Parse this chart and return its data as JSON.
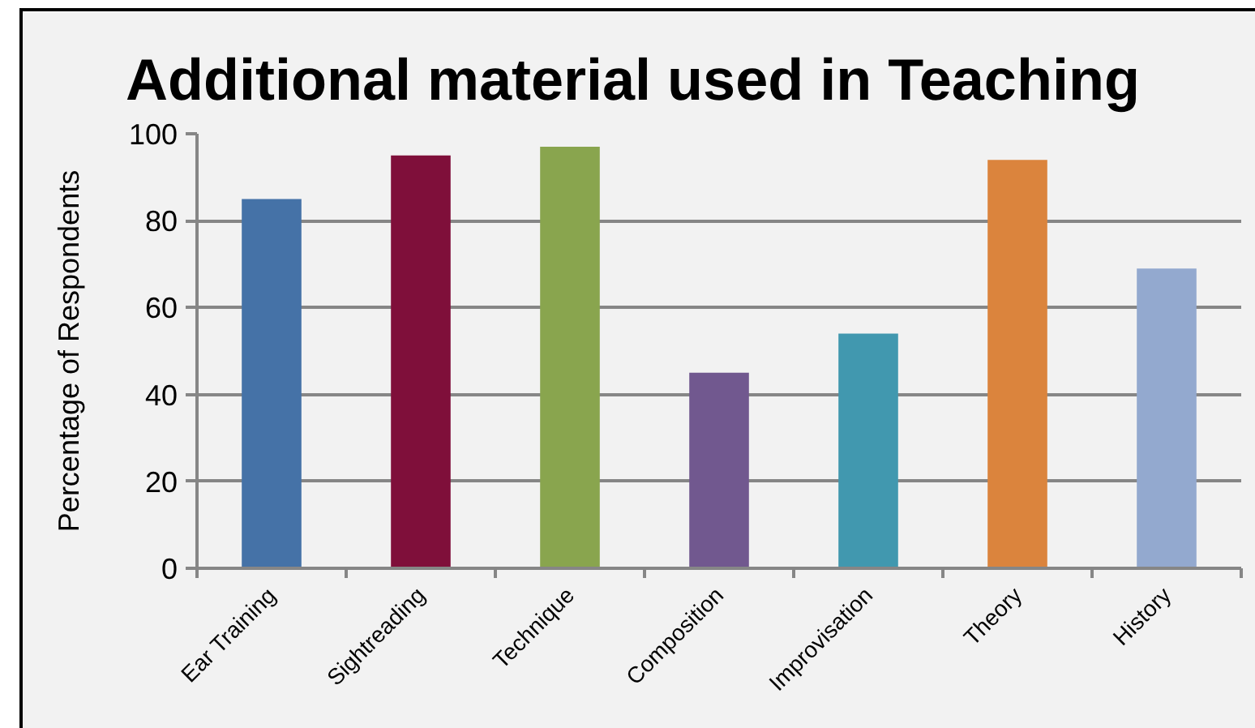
{
  "chart_data": {
    "type": "bar",
    "title": "Additional material used in Teaching",
    "ylabel": "Percentage of Respondents",
    "categories": [
      "Ear Training",
      "Sightreading",
      "Technique",
      "Composition",
      "Improvisation",
      "Theory",
      "History"
    ],
    "values": [
      85,
      95,
      97,
      45,
      54,
      94,
      69
    ],
    "colors": [
      "#4572a7",
      "#7f0f3a",
      "#89a54e",
      "#71588f",
      "#4198af",
      "#db843d",
      "#93a9cf"
    ],
    "ylim": [
      0,
      100
    ],
    "yticks": [
      0,
      20,
      40,
      60,
      80,
      100
    ],
    "grid": "y"
  }
}
